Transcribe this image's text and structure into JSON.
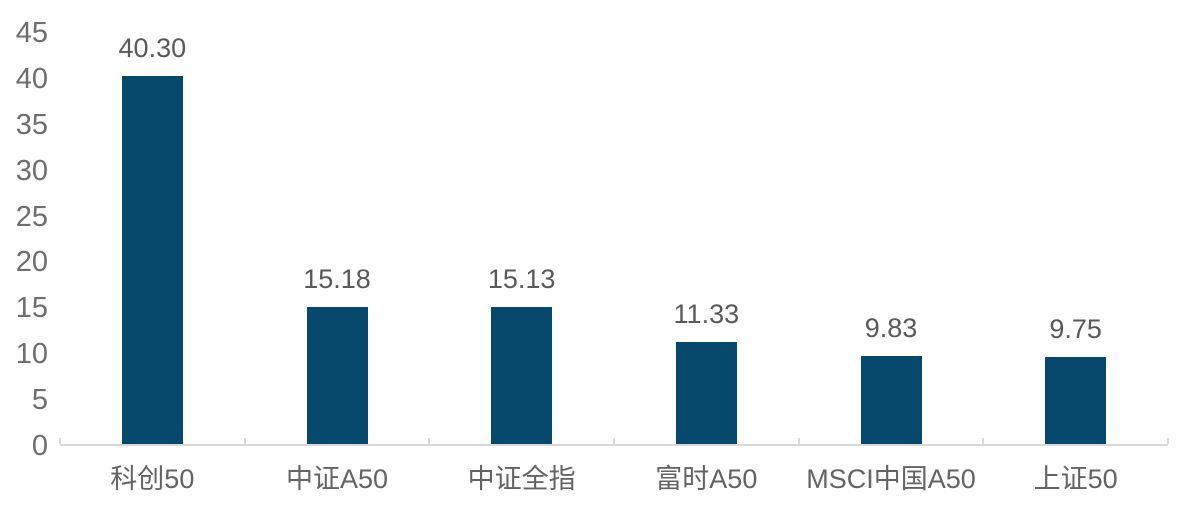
{
  "chart_data": {
    "type": "bar",
    "title": "",
    "xlabel": "",
    "ylabel": "",
    "categories": [
      "科创50",
      "中证A50",
      "中证全指",
      "富时A50",
      "MSCI中国A50",
      "上证50"
    ],
    "values": [
      40.3,
      15.18,
      15.13,
      11.33,
      9.83,
      9.75
    ],
    "data_labels": [
      "40.30",
      "15.18",
      "15.13",
      "11.33",
      "9.83",
      "9.75"
    ],
    "ylim": [
      0,
      45
    ],
    "ytick_step": 5,
    "ytick_labels": [
      "0",
      "5",
      "10",
      "15",
      "20",
      "25",
      "30",
      "35",
      "40",
      "45"
    ],
    "grid": false,
    "legend": "none",
    "colors": {
      "bar": "#06496d",
      "axis_line": "#d9d9d9",
      "y_axis_text": "#6e6e6e",
      "data_label_text": "#595959",
      "category_text": "#636363",
      "background": "#ffffff"
    }
  }
}
